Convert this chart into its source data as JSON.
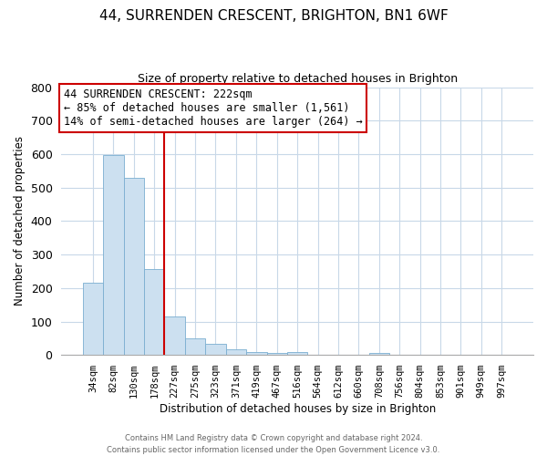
{
  "title": "44, SURRENDEN CRESCENT, BRIGHTON, BN1 6WF",
  "subtitle": "Size of property relative to detached houses in Brighton",
  "xlabel": "Distribution of detached houses by size in Brighton",
  "ylabel": "Number of detached properties",
  "bar_labels": [
    "34sqm",
    "82sqm",
    "130sqm",
    "178sqm",
    "227sqm",
    "275sqm",
    "323sqm",
    "371sqm",
    "419sqm",
    "467sqm",
    "516sqm",
    "564sqm",
    "612sqm",
    "660sqm",
    "708sqm",
    "756sqm",
    "804sqm",
    "853sqm",
    "901sqm",
    "949sqm",
    "997sqm"
  ],
  "bar_values": [
    215,
    597,
    528,
    257,
    115,
    50,
    33,
    18,
    10,
    5,
    8,
    0,
    0,
    0,
    7,
    0,
    0,
    0,
    0,
    0,
    0
  ],
  "bar_color": "#cce0f0",
  "bar_edge_color": "#7aaed0",
  "vline_bar_index": 4,
  "vline_color": "#cc0000",
  "ylim": [
    0,
    800
  ],
  "yticks": [
    0,
    100,
    200,
    300,
    400,
    500,
    600,
    700,
    800
  ],
  "annotation_title": "44 SURRENDEN CRESCENT: 222sqm",
  "annotation_line1": "← 85% of detached houses are smaller (1,561)",
  "annotation_line2": "14% of semi-detached houses are larger (264) →",
  "footer1": "Contains HM Land Registry data © Crown copyright and database right 2024.",
  "footer2": "Contains public sector information licensed under the Open Government Licence v3.0."
}
